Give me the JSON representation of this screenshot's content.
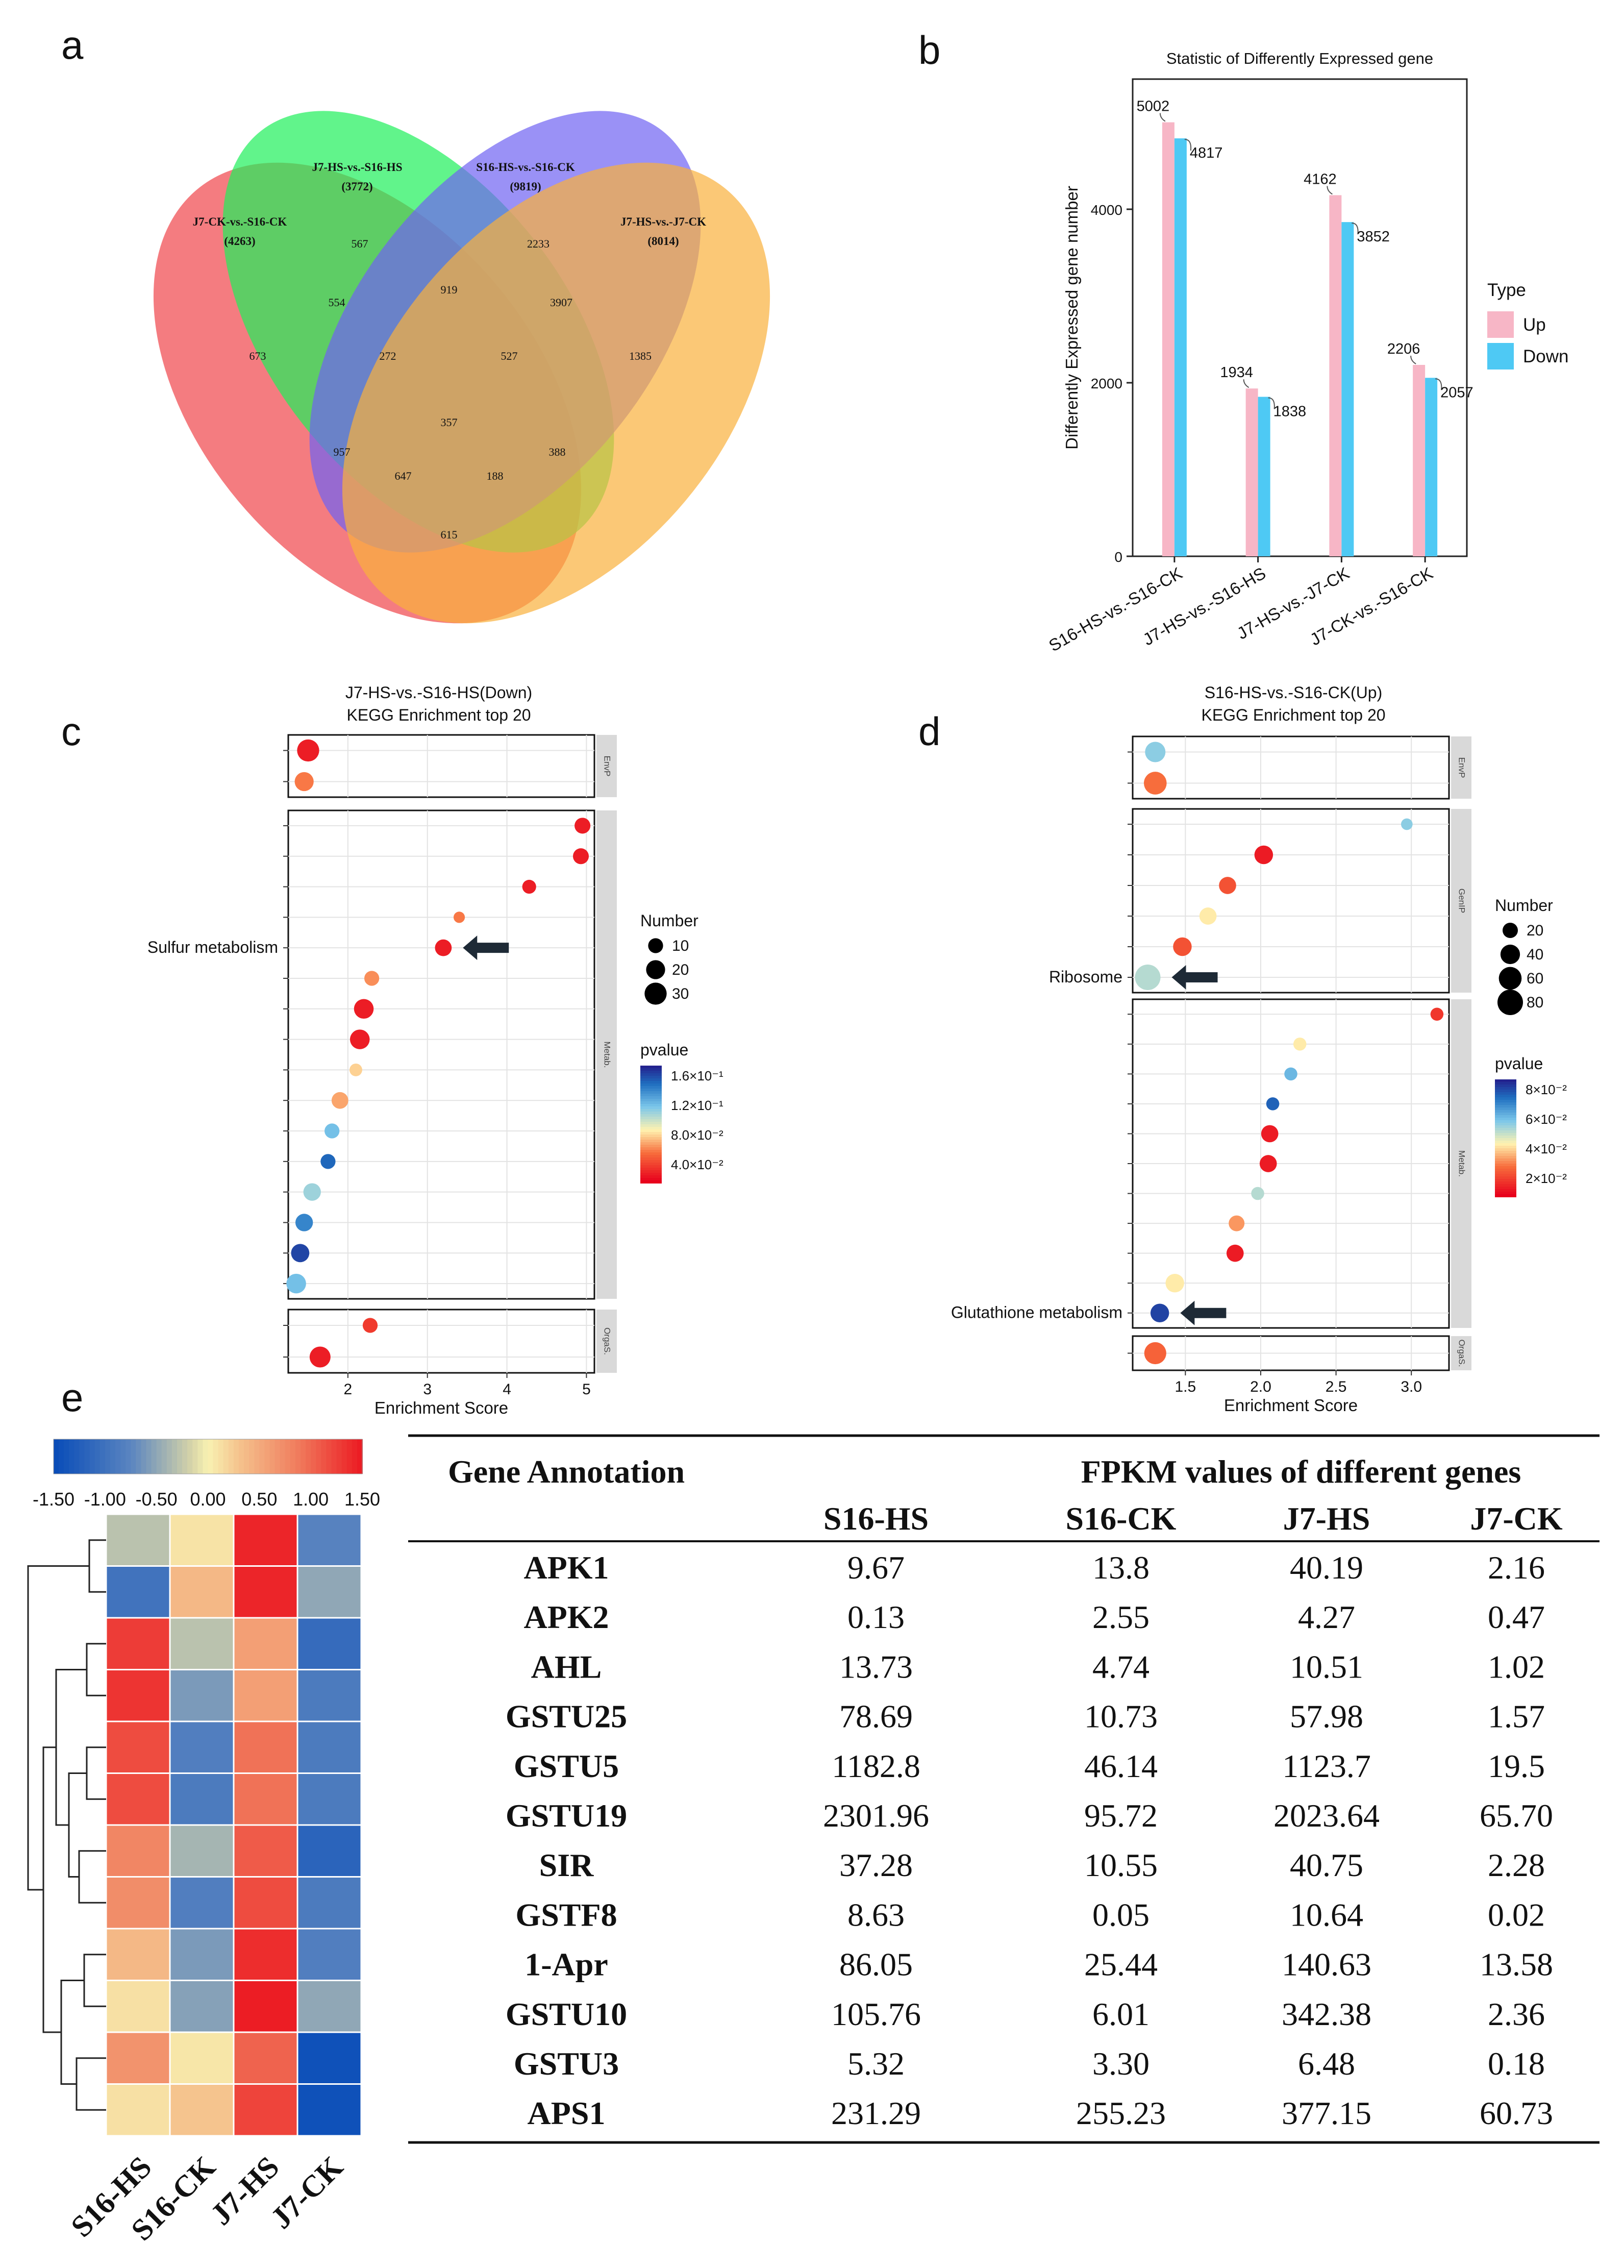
{
  "chart_data": [
    {
      "panel": "a",
      "type": "venn",
      "sets": [
        {
          "name": "J7-CK-vs.-S16-CK",
          "size_label": "(4263)",
          "color": "#f0454a"
        },
        {
          "name": "J7-HS-vs.-S16-HS",
          "size_label": "(3772)",
          "color": "#1ef05a"
        },
        {
          "name": "S16-HS-vs.-S16-CK",
          "size_label": "(9819)",
          "color": "#6f62f2"
        },
        {
          "name": "J7-HS-vs.-J7-CK",
          "size_label": "(8014)",
          "color": "#f9b13c"
        }
      ],
      "regions": [
        "673",
        "567",
        "2233",
        "1385",
        "554",
        "919",
        "3907",
        "272",
        "527",
        "357",
        "957",
        "388",
        "647",
        "188",
        "615"
      ]
    },
    {
      "panel": "b",
      "type": "bar",
      "title": "Statistic of Differently Expressed gene",
      "xlabel": "",
      "ylabel": "Differently Expressed gene number",
      "ylim": [
        0,
        5500
      ],
      "yticks": [
        0,
        2000,
        4000
      ],
      "categories": [
        "S16-HS-vs.-S16-CK",
        "J7-HS-vs.-S16-HS",
        "J7-HS-vs.-J7-CK",
        "J7-CK-vs.-S16-CK"
      ],
      "series": [
        {
          "name": "Up",
          "color": "#f7b6c6",
          "values": [
            5002,
            1934,
            4162,
            2206
          ]
        },
        {
          "name": "Down",
          "color": "#4ec9f4",
          "values": [
            4817,
            1838,
            3852,
            2057
          ]
        }
      ],
      "legend_title": "Type",
      "legend_position": "right"
    },
    {
      "panel": "c",
      "type": "scatter",
      "title": "J7-HS-vs.-S16-HS(Down)",
      "subtitle": "KEGG Enrichment top 20",
      "xlabel": "Enrichment Score",
      "xlim": [
        1.25,
        5.1
      ],
      "xticks": [
        2,
        3,
        4,
        5
      ],
      "facets": [
        {
          "label": "EnvP",
          "points": [
            {
              "x": 1.5,
              "size": 30,
              "p": 0.03
            },
            {
              "x": 1.45,
              "size": 20,
              "p": 0.06
            }
          ]
        },
        {
          "label": "Metab.",
          "points": [
            {
              "x": 4.95,
              "size": 12,
              "p": 0.03
            },
            {
              "x": 4.93,
              "size": 12,
              "p": 0.03
            },
            {
              "x": 4.28,
              "size": 8,
              "p": 0.03
            },
            {
              "x": 3.4,
              "size": 4,
              "p": 0.06
            },
            {
              "x": 3.2,
              "size": 14,
              "p": 0.03,
              "label": "Sulfur metabolism"
            },
            {
              "x": 2.3,
              "size": 10,
              "p": 0.065
            },
            {
              "x": 2.2,
              "size": 22,
              "p": 0.03
            },
            {
              "x": 2.15,
              "size": 22,
              "p": 0.03
            },
            {
              "x": 2.1,
              "size": 6,
              "p": 0.08
            },
            {
              "x": 1.9,
              "size": 14,
              "p": 0.07
            },
            {
              "x": 1.8,
              "size": 10,
              "p": 0.12
            },
            {
              "x": 1.75,
              "size": 10,
              "p": 0.15
            },
            {
              "x": 1.55,
              "size": 16,
              "p": 0.11
            },
            {
              "x": 1.45,
              "size": 16,
              "p": 0.14
            },
            {
              "x": 1.4,
              "size": 18,
              "p": 0.16
            },
            {
              "x": 1.35,
              "size": 22,
              "p": 0.12
            }
          ]
        },
        {
          "label": "OrgaS.",
          "points": [
            {
              "x": 2.28,
              "size": 10,
              "p": 0.04
            },
            {
              "x": 1.65,
              "size": 26,
              "p": 0.03
            }
          ]
        }
      ],
      "size_legend_title": "Number",
      "size_legend": [
        "10",
        "20",
        "30"
      ],
      "color_legend_title": "pvalue",
      "color_legend": [
        "1.6×10⁻¹",
        "1.2×10⁻¹",
        "8.0×10⁻²",
        "4.0×10⁻²"
      ],
      "annotation": "Sulfur metabolism"
    },
    {
      "panel": "d",
      "type": "scatter",
      "title": "S16-HS-vs.-S16-CK(Up)",
      "subtitle": "KEGG Enrichment top 20",
      "xlabel": "Enrichment Score",
      "xlim": [
        1.15,
        3.25
      ],
      "xticks": [
        1.5,
        2.0,
        2.5,
        3.0
      ],
      "xtick_labels": [
        "1.5",
        "2.0",
        "2.5",
        "3.0"
      ],
      "facets": [
        {
          "label": "EnvP",
          "points": [
            {
              "x": 1.3,
              "size": 45,
              "p": 0.06
            },
            {
              "x": 1.3,
              "size": 60,
              "p": 0.03
            }
          ]
        },
        {
          "label": "GenIP",
          "points": [
            {
              "x": 2.97,
              "size": 8,
              "p": 0.06
            },
            {
              "x": 2.02,
              "size": 35,
              "p": 0.015
            },
            {
              "x": 1.78,
              "size": 28,
              "p": 0.025
            },
            {
              "x": 1.65,
              "size": 28,
              "p": 0.045
            },
            {
              "x": 1.48,
              "size": 35,
              "p": 0.025
            },
            {
              "x": 1.25,
              "size": 80,
              "p": 0.055,
              "label": "Ribosome"
            }
          ]
        },
        {
          "label": "Metab.",
          "points": [
            {
              "x": 3.17,
              "size": 12,
              "p": 0.02
            },
            {
              "x": 2.26,
              "size": 12,
              "p": 0.045
            },
            {
              "x": 2.2,
              "size": 12,
              "p": 0.065
            },
            {
              "x": 2.08,
              "size": 12,
              "p": 0.08
            },
            {
              "x": 2.06,
              "size": 28,
              "p": 0.015
            },
            {
              "x": 2.05,
              "size": 28,
              "p": 0.015
            },
            {
              "x": 1.98,
              "size": 12,
              "p": 0.055
            },
            {
              "x": 1.84,
              "size": 22,
              "p": 0.035
            },
            {
              "x": 1.83,
              "size": 28,
              "p": 0.015
            },
            {
              "x": 1.43,
              "size": 35,
              "p": 0.045
            },
            {
              "x": 1.33,
              "size": 35,
              "p": 0.085,
              "label": "Glutathione metabolism"
            }
          ]
        },
        {
          "label": "OrgaS.",
          "points": [
            {
              "x": 1.3,
              "size": 55,
              "p": 0.028
            }
          ]
        }
      ],
      "size_legend_title": "Number",
      "size_legend": [
        "20",
        "40",
        "60",
        "80"
      ],
      "color_legend_title": "pvalue",
      "color_legend": [
        "8×10⁻²",
        "6×10⁻²",
        "4×10⁻²",
        "2×10⁻²"
      ],
      "annotations": [
        "Ribosome",
        "Glutathione metabolism"
      ]
    },
    {
      "panel": "e",
      "type": "heatmap",
      "scale": [
        "-1.50",
        "-1.00",
        "-0.50",
        "0.00",
        "0.50",
        "1.00",
        "1.50"
      ],
      "columns": [
        "S16-HS",
        "S16-CK",
        "J7-HS",
        "J7-CK"
      ],
      "cells": [
        [
          -0.3,
          0.1,
          1.45,
          -0.8
        ],
        [
          -1.0,
          0.4,
          1.45,
          -0.5
        ],
        [
          1.3,
          -0.3,
          0.6,
          -1.1
        ],
        [
          1.35,
          -0.6,
          0.6,
          -0.9
        ],
        [
          1.2,
          -0.85,
          0.95,
          -0.9
        ],
        [
          1.2,
          -0.9,
          0.95,
          -0.9
        ],
        [
          0.8,
          -0.4,
          1.1,
          -1.2
        ],
        [
          0.75,
          -0.85,
          1.2,
          -0.9
        ],
        [
          0.4,
          -0.6,
          1.4,
          -0.85
        ],
        [
          0.12,
          -0.55,
          1.5,
          -0.5
        ],
        [
          0.7,
          0.08,
          1.05,
          -1.45
        ],
        [
          0.12,
          0.3,
          1.25,
          -1.45
        ]
      ]
    },
    {
      "panel": "e",
      "type": "table",
      "header_gene": "Gene Annotation",
      "header_group": "FPKM values of different genes",
      "columns": [
        "S16-HS",
        "S16-CK",
        "J7-HS",
        "J7-CK"
      ],
      "rows": [
        {
          "gene": "APK1",
          "values": [
            "9.67",
            "13.8",
            "40.19",
            "2.16"
          ]
        },
        {
          "gene": "APK2",
          "values": [
            "0.13",
            "2.55",
            "4.27",
            "0.47"
          ]
        },
        {
          "gene": "AHL",
          "values": [
            "13.73",
            "4.74",
            "10.51",
            "1.02"
          ]
        },
        {
          "gene": "GSTU25",
          "values": [
            "78.69",
            "10.73",
            "57.98",
            "1.57"
          ]
        },
        {
          "gene": "GSTU5",
          "values": [
            "1182.8",
            "46.14",
            "1123.7",
            "19.5"
          ]
        },
        {
          "gene": "GSTU19",
          "values": [
            "2301.96",
            "95.72",
            "2023.64",
            "65.70"
          ]
        },
        {
          "gene": "SIR",
          "values": [
            "37.28",
            "10.55",
            "40.75",
            "2.28"
          ]
        },
        {
          "gene": "GSTF8",
          "values": [
            "8.63",
            "0.05",
            "10.64",
            "0.02"
          ]
        },
        {
          "gene": "1-Apr",
          "values": [
            "86.05",
            "25.44",
            "140.63",
            "13.58"
          ]
        },
        {
          "gene": "GSTU10",
          "values": [
            "105.76",
            "6.01",
            "342.38",
            "2.36"
          ]
        },
        {
          "gene": "GSTU3",
          "values": [
            "5.32",
            "3.30",
            "6.48",
            "0.18"
          ]
        },
        {
          "gene": "APS1",
          "values": [
            "231.29",
            "255.23",
            "377.15",
            "60.73"
          ]
        }
      ]
    }
  ],
  "panel_labels": [
    "a",
    "b",
    "c",
    "d",
    "e"
  ]
}
